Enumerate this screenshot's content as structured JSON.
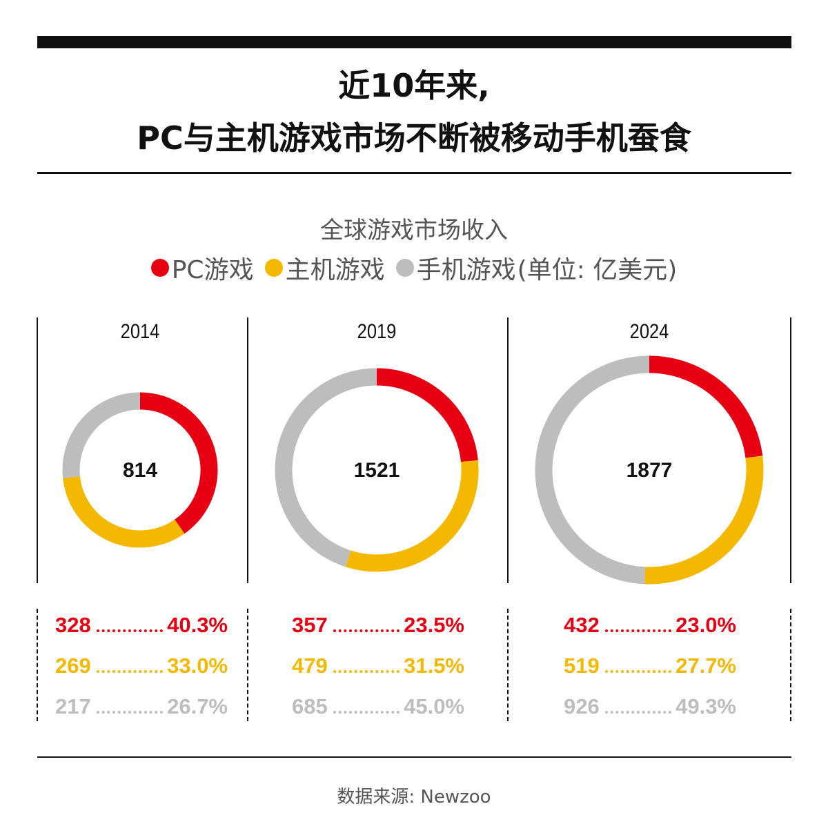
{
  "title": {
    "line1": "近10年来,",
    "line2": "PC与主机游戏市场不断被移动手机蚕食"
  },
  "subtitle": "全球游戏市场收入",
  "legend": {
    "items": [
      "PC游戏",
      "主机游戏",
      "手机游戏"
    ],
    "unit_note": "(单位: 亿美元)"
  },
  "colors": {
    "pc": "#e60012",
    "console": "#f5b800",
    "mobile": "#bdbdbd"
  },
  "source": "数据来源: Newzoo",
  "chart_data": [
    {
      "type": "pie",
      "year": "2014",
      "total": "814",
      "series": [
        {
          "name": "PC游戏",
          "value": 328,
          "value_label": "328",
          "pct_label": "40.3%"
        },
        {
          "name": "主机游戏",
          "value": 269,
          "value_label": "269",
          "pct_label": "33.0%"
        },
        {
          "name": "手机游戏",
          "value": 217,
          "value_label": "217",
          "pct_label": "26.7%"
        }
      ]
    },
    {
      "type": "pie",
      "year": "2019",
      "total": "1521",
      "series": [
        {
          "name": "PC游戏",
          "value": 357,
          "value_label": "357",
          "pct_label": "23.5%"
        },
        {
          "name": "主机游戏",
          "value": 479,
          "value_label": "479",
          "pct_label": "31.5%"
        },
        {
          "name": "手机游戏",
          "value": 685,
          "value_label": "685",
          "pct_label": "45.0%"
        }
      ]
    },
    {
      "type": "pie",
      "year": "2024",
      "total": "1877",
      "series": [
        {
          "name": "PC游戏",
          "value": 432,
          "value_label": "432",
          "pct_label": "23.0%"
        },
        {
          "name": "主机游戏",
          "value": 519,
          "value_label": "519",
          "pct_label": "27.7%"
        },
        {
          "name": "手机游戏",
          "value": 926,
          "value_label": "926",
          "pct_label": "49.3%"
        }
      ]
    }
  ]
}
